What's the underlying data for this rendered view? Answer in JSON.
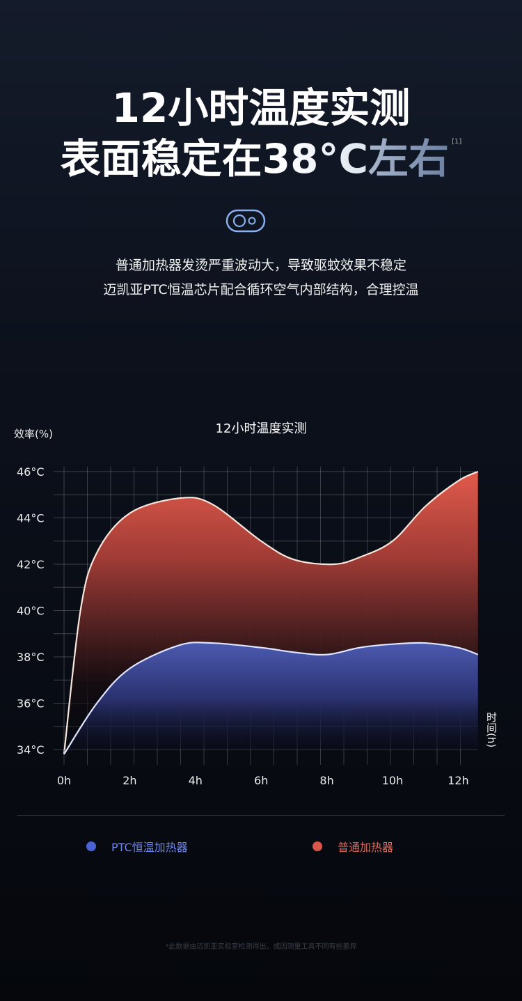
{
  "header": {
    "title_line1": "12小时温度实测",
    "title_line2_main": "表面稳定在38°C",
    "title_line2_accent": "左右",
    "footnote_marker": "[1]"
  },
  "icon": "toggle-capsule-icon",
  "subtitle": [
    "普通加热器发烫严重波动大，导致驱蚊效果不稳定",
    "迈凯亚PTC恒温芯片配合循环空气内部结构，合理控温"
  ],
  "chart_data": {
    "type": "area",
    "title": "12小时温度实测",
    "ylabel": "效率(%)",
    "xlabel": "时间(h)",
    "y_ticks": [
      "34°C",
      "36°C",
      "38°C",
      "40°C",
      "42°C",
      "44°C",
      "46°C"
    ],
    "x_ticks": [
      "0h",
      "2h",
      "4h",
      "6h",
      "8h",
      "10h",
      "12h"
    ],
    "ylim": [
      34,
      46
    ],
    "xlim": [
      0,
      12.6
    ],
    "grid": true,
    "legend_position": "bottom",
    "series": [
      {
        "name": "PTC恒温加热器",
        "color": "#4a5bc4",
        "x": [
          0,
          1,
          2,
          3.5,
          4.5,
          6,
          7,
          8,
          9,
          10,
          11,
          12,
          12.6
        ],
        "y": [
          33.8,
          36,
          37.5,
          38.5,
          38.6,
          38.4,
          38.2,
          38.1,
          38.4,
          38.55,
          38.6,
          38.4,
          38.1
        ]
      },
      {
        "name": "普通加热器",
        "color": "#d9574a",
        "x": [
          0,
          0.5,
          1,
          2,
          3.5,
          4.5,
          6,
          7,
          8.2,
          9,
          10,
          11,
          12,
          12.6
        ],
        "y": [
          33.8,
          40,
          42.5,
          44.2,
          44.85,
          44.6,
          43,
          42.2,
          42,
          42.3,
          43,
          44.5,
          45.6,
          46
        ]
      }
    ]
  },
  "footnote": "*此数据由迈凯亚实验室检测得出，或因测量工具不同有些差异"
}
